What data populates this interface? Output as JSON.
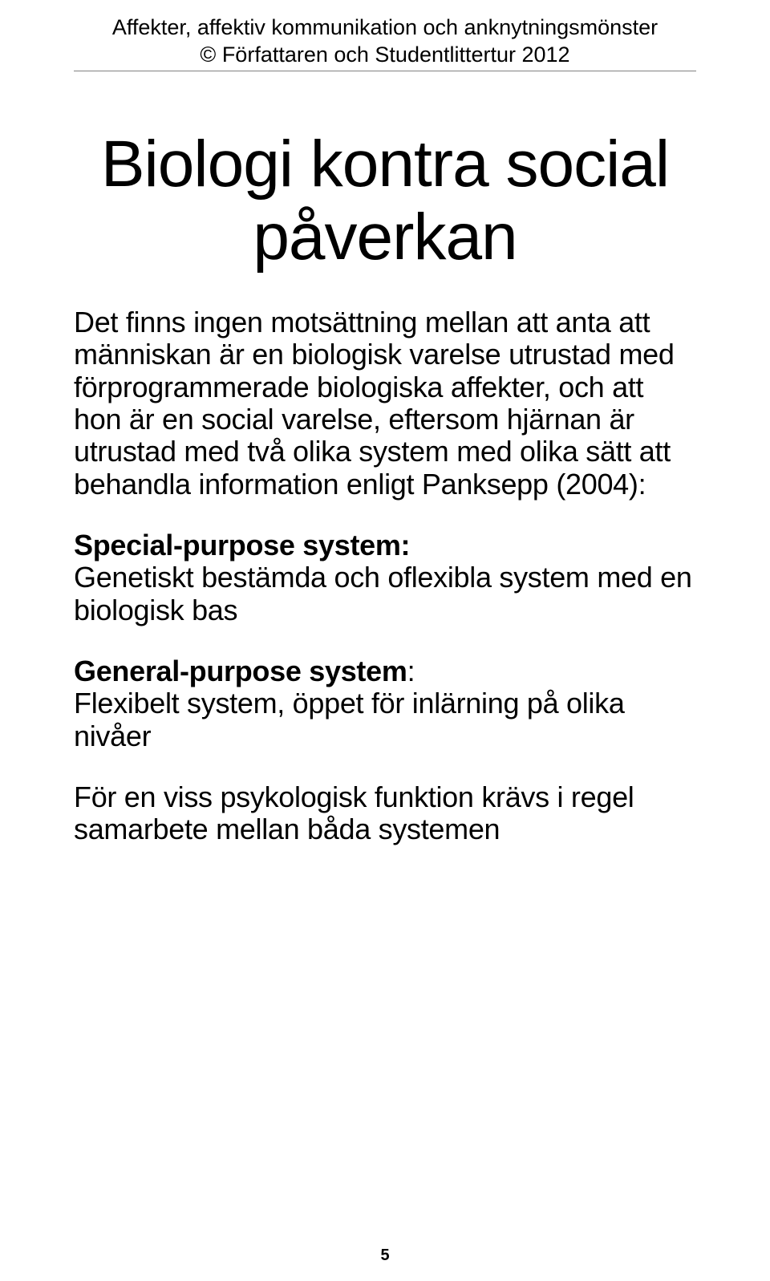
{
  "header": {
    "line1": "Affekter, affektiv kommunikation och anknytningsmönster",
    "line2": "© Författaren och Studentlittertur 2012"
  },
  "title": "Biologi kontra social påverkan",
  "paragraphs": {
    "intro": "Det finns ingen motsättning mellan att anta att människan är en biologisk varelse utrustad med förprogrammerade biologiska affekter, och att hon är en social varelse, eftersom hjärnan är utrustad med två olika system med olika sätt att behandla information enligt Panksepp (2004):",
    "special_heading": "Special-purpose system:",
    "special_body": "Genetiskt bestämda och oflexibla system med en biologisk bas",
    "general_heading": "General-purpose system",
    "general_colon": ":",
    "general_body": "Flexibelt system, öppet för inlärning på olika nivåer",
    "closing": "För en viss psykologisk funktion krävs i regel samarbete mellan båda systemen"
  },
  "page_number": "5",
  "colors": {
    "text": "#000000",
    "background": "#ffffff",
    "rule": "#808080"
  },
  "typography": {
    "header_fontsize": 27,
    "title_fontsize": 82,
    "body_fontsize": 36,
    "pagenum_fontsize": 20
  }
}
